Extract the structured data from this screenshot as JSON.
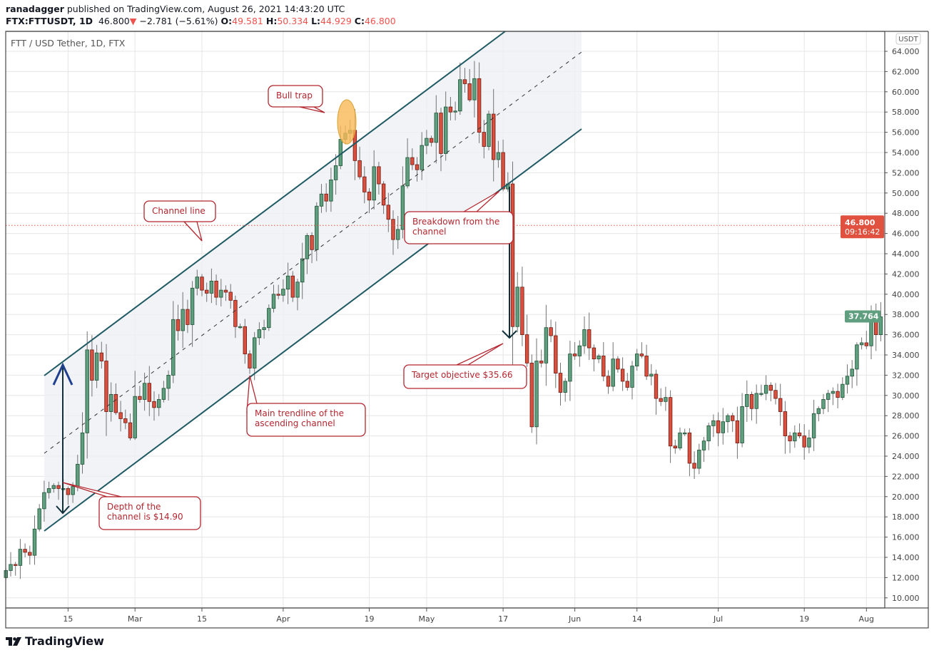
{
  "header": {
    "publisher": "ranadagger",
    "published_text": "published on TradingView.com, August 26, 2021 14:43:20 UTC",
    "symbol": "FTX:FTTUSDT, 1D",
    "last": "46.800",
    "change": "−2.781 (−5.61%)",
    "o_label": "O:",
    "o": "49.581",
    "h_label": "H:",
    "h": "50.334",
    "l_label": "L:",
    "l": "44.929",
    "c_label": "C:",
    "c": "46.800"
  },
  "legend": "FTT / USD Tether, 1D, FTX",
  "currency_badge": "USDT",
  "current_price_label": {
    "price": "46.800",
    "countdown": "09:16:42",
    "value": 46.8,
    "color": "#e0523f"
  },
  "last_visible_label": {
    "price": "37.764",
    "value": 37.764,
    "color": "#5f9f7f"
  },
  "footer": {
    "brand": "TradingView"
  },
  "colors": {
    "up": "#5f9f7f",
    "down": "#d9503f",
    "channel": "#1f5a64",
    "callout": "#b3262f",
    "highlight": "#f7b955"
  },
  "annotations": {
    "bull_trap": "Bull trap",
    "channel_line": "Channel line",
    "breakdown": [
      "Breakdown from the",
      "channel"
    ],
    "target": "Target objective $35.66",
    "main_trendline": [
      "Main trendline of the",
      "ascending channel"
    ],
    "depth": [
      "Depth of the",
      "channel is $14.90"
    ]
  },
  "chart_data": {
    "type": "candlestick",
    "title": "FTT / USD Tether, 1D, FTX",
    "interval": "1D",
    "ylim": [
      9,
      65.5
    ],
    "y_ticks": [
      "10.000",
      "12.000",
      "14.000",
      "16.000",
      "18.000",
      "20.000",
      "22.000",
      "24.000",
      "26.000",
      "28.000",
      "30.000",
      "32.000",
      "34.000",
      "36.000",
      "38.000",
      "40.000",
      "42.000",
      "44.000",
      "46.000",
      "48.000",
      "50.000",
      "52.000",
      "54.000",
      "56.000",
      "58.000",
      "60.000",
      "62.000",
      "64.000"
    ],
    "x_tick_labels": [
      "15",
      "Mar",
      "15",
      "Apr",
      "19",
      "May",
      "17",
      "Jun",
      "14",
      "Jul",
      "19",
      "Aug"
    ],
    "grid": true,
    "first_open": 12.0,
    "close": [
      12.7,
      13.3,
      13.2,
      14.8,
      14.5,
      14.2,
      16.8,
      18.8,
      20.4,
      20.8,
      21.1,
      20.8,
      20.8,
      20.2,
      21.0,
      23.2,
      26.3,
      34.5,
      31.5,
      34.2,
      33.4,
      28.4,
      30.1,
      28.3,
      27.7,
      27.3,
      25.8,
      29.9,
      29.6,
      31.2,
      29.4,
      28.8,
      29.6,
      30.7,
      32.0,
      37.5,
      36.4,
      38.5,
      37.0,
      40.6,
      41.7,
      40.4,
      40.1,
      41.3,
      39.7,
      40.4,
      40.2,
      39.4,
      36.8,
      36.8,
      34.1,
      32.7,
      35.7,
      36.5,
      36.7,
      38.6,
      40.0,
      39.9,
      40.5,
      41.8,
      39.7,
      41.2,
      43.5,
      45.8,
      44.4,
      48.7,
      49.9,
      49.2,
      51.3,
      52.7,
      55.3,
      55.9,
      56.2,
      53.2,
      51.6,
      50.1,
      49.3,
      52.6,
      50.9,
      48.8,
      47.4,
      45.4,
      46.4,
      50.7,
      53.5,
      52.8,
      52.3,
      54.7,
      55.4,
      55.0,
      57.9,
      53.9,
      58.5,
      58.0,
      58.1,
      61.2,
      60.8,
      59.2,
      61.3,
      56.0,
      54.6,
      57.8,
      53.3,
      54.0,
      50.4,
      50.9,
      36.8,
      40.7,
      36.0,
      33.2,
      26.9,
      33.4,
      33.2,
      36.7,
      35.9,
      32.2,
      30.3,
      31.4,
      34.1,
      33.9,
      34.9,
      36.5,
      34.7,
      33.6,
      33.9,
      31.9,
      30.9,
      33.6,
      32.6,
      31.4,
      30.8,
      32.9,
      34.1,
      33.9,
      31.9,
      32.1,
      29.7,
      29.4,
      29.8,
      25.0,
      24.8,
      26.3,
      26.3,
      23.3,
      22.8,
      24.6,
      25.5,
      27.0,
      27.5,
      26.3,
      27.4,
      28.0,
      27.5,
      25.3,
      28.9,
      30.1,
      28.7,
      30.2,
      30.2,
      31.0,
      30.5,
      29.7,
      28.4,
      26.0,
      25.5,
      26.3,
      26.0,
      24.9,
      25.8,
      28.2,
      28.7,
      29.6,
      30.2,
      30.4,
      29.8,
      31.1,
      31.9,
      32.6,
      35.0,
      35.2,
      34.9,
      37.8,
      36.0,
      37.764
    ]
  }
}
